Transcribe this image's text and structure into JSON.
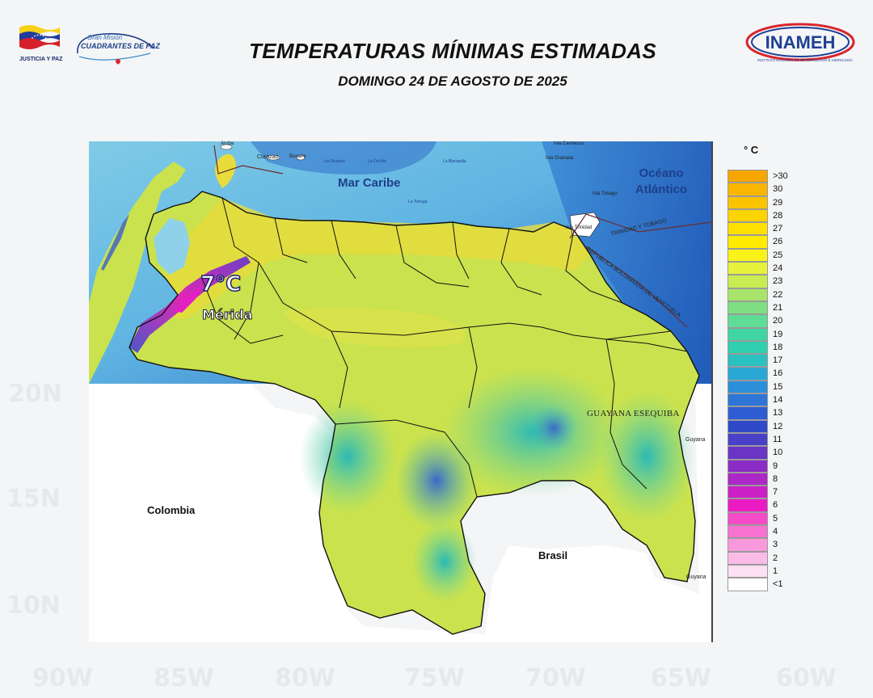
{
  "header": {
    "logo_left_text": "JUSTICIA Y PAZ",
    "mission_top": "Gran Misión",
    "mission_name": "CUADRANTES DE PAZ",
    "title": "TEMPERATURAS MÍNIMAS ESTIMADAS",
    "subtitle": "DOMINGO 24 DE AGOSTO DE 2025",
    "agency": "INAMEH",
    "agency_full": "INSTITUTO NACIONAL DE METEOROLOGÍA E HIDROLOGÍA"
  },
  "map": {
    "sea_labels": [
      "Mar Caribe",
      "Océano Atlántico"
    ],
    "countries": [
      "Colombia",
      "Brasil"
    ],
    "islands": [
      "Aruba",
      "Curazao",
      "Bonaire",
      "Isla Carriacou",
      "Isla Granada",
      "Isla Tobago",
      "Isla Trinidad",
      "La Orchila",
      "La Blanquilla",
      "La Tortuga",
      "Los Roques"
    ],
    "maritime_labels": [
      "TRINIDAD Y TOBAGO",
      "REPUBLICA BOLIVARIANA DE VENEZUELA"
    ],
    "region_label": "GUAYANA ESEQUIBA",
    "border_labels": [
      "Guyana",
      "Guyana"
    ],
    "highlight": {
      "value": "7°C",
      "place": "Mérida"
    },
    "background_longitudes": [
      "90W",
      "85W",
      "80W",
      "75W",
      "70W",
      "65W",
      "60W"
    ],
    "background_latitudes": [
      "20N",
      "15N",
      "10N"
    ]
  },
  "legend": {
    "unit": "° C",
    "items": [
      {
        "label": ">30",
        "color": "#f7a600"
      },
      {
        "label": "30",
        "color": "#f8b600"
      },
      {
        "label": "29",
        "color": "#fac500"
      },
      {
        "label": "28",
        "color": "#fcd400"
      },
      {
        "label": "27",
        "color": "#fde000"
      },
      {
        "label": "26",
        "color": "#ffec00"
      },
      {
        "label": "25",
        "color": "#f9f31a"
      },
      {
        "label": "24",
        "color": "#e6f23c"
      },
      {
        "label": "23",
        "color": "#c9ec52"
      },
      {
        "label": "22",
        "color": "#a9e46a"
      },
      {
        "label": "21",
        "color": "#7fdf83"
      },
      {
        "label": "20",
        "color": "#5fdc96"
      },
      {
        "label": "19",
        "color": "#40d6a3"
      },
      {
        "label": "18",
        "color": "#30cfaf"
      },
      {
        "label": "17",
        "color": "#2bc1c0"
      },
      {
        "label": "16",
        "color": "#2aa8d5"
      },
      {
        "label": "15",
        "color": "#2b8fd9"
      },
      {
        "label": "14",
        "color": "#2d76d8"
      },
      {
        "label": "13",
        "color": "#2e5dd3"
      },
      {
        "label": "12",
        "color": "#3049c9"
      },
      {
        "label": "11",
        "color": "#4a3fc7"
      },
      {
        "label": "10",
        "color": "#6a34c4"
      },
      {
        "label": "9",
        "color": "#8b2cc6"
      },
      {
        "label": "8",
        "color": "#ab27c6"
      },
      {
        "label": "7",
        "color": "#cb20c6"
      },
      {
        "label": "6",
        "color": "#ea1bc3"
      },
      {
        "label": "5",
        "color": "#f44cc8"
      },
      {
        "label": "4",
        "color": "#f772d1"
      },
      {
        "label": "3",
        "color": "#f999dc"
      },
      {
        "label": "2",
        "color": "#fbbbe7"
      },
      {
        "label": "1",
        "color": "#fde0f3"
      },
      {
        "label": "<1",
        "color": "#ffffff"
      }
    ]
  },
  "colors": {
    "sea_deep": "#2e7fd0",
    "sea_shallow": "#8fd1e8",
    "land_main": "#c9e24e",
    "land_warm": "#e7dc3c",
    "land_cool": "#6bd6a0"
  }
}
